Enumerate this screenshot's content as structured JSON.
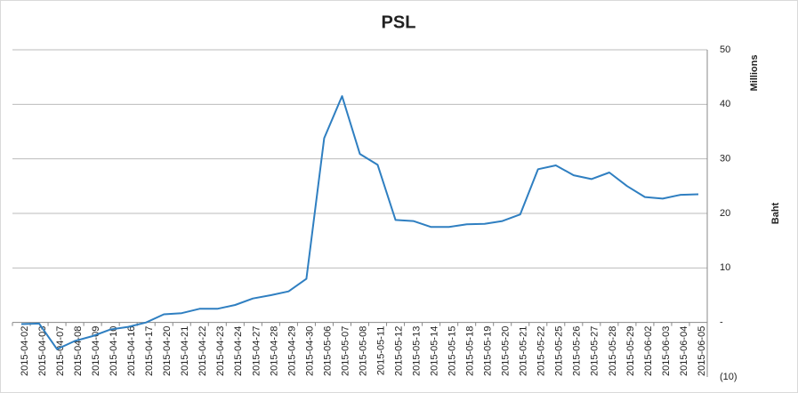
{
  "chart_data": {
    "type": "line",
    "title": "PSL",
    "y_unit": "Millions",
    "y_label": "Baht",
    "categories": [
      "2015-04-02",
      "2015-04-03",
      "2015-04-07",
      "2015-04-08",
      "2015-04-09",
      "2015-04-10",
      "2015-04-16",
      "2015-04-17",
      "2015-04-20",
      "2015-04-21",
      "2015-04-22",
      "2015-04-23",
      "2015-04-24",
      "2015-04-27",
      "2015-04-28",
      "2015-04-29",
      "2015-04-30",
      "2015-05-06",
      "2015-05-07",
      "2015-05-08",
      "2015-05-11",
      "2015-05-12",
      "2015-05-13",
      "2015-05-14",
      "2015-05-15",
      "2015-05-18",
      "2015-05-19",
      "2015-05-20",
      "2015-05-21",
      "2015-05-22",
      "2015-05-25",
      "2015-05-26",
      "2015-05-27",
      "2015-05-28",
      "2015-05-29",
      "2015-06-02",
      "2015-06-03",
      "2015-06-04",
      "2015-06-05"
    ],
    "values": [
      -0.3,
      -0.2,
      -4.9,
      -3.4,
      -2.5,
      -1.3,
      -0.8,
      0,
      1.5,
      1.7,
      2.5,
      2.5,
      3.2,
      4.4,
      5.0,
      5.7,
      8.0,
      33.8,
      41.5,
      30.9,
      28.9,
      18.8,
      18.6,
      17.5,
      17.5,
      18.0,
      18.1,
      18.6,
      19.8,
      28.1,
      28.8,
      27.0,
      26.3,
      27.5,
      25.0,
      23.0,
      22.7,
      23.4,
      23.5
    ],
    "color": "#2f7fc1",
    "ylim": [
      -10,
      50
    ],
    "yticks": [
      {
        "value": -10,
        "label": "(10)"
      },
      {
        "value": 0,
        "label": "-"
      },
      10,
      20,
      30,
      40,
      50
    ],
    "grid": true
  }
}
